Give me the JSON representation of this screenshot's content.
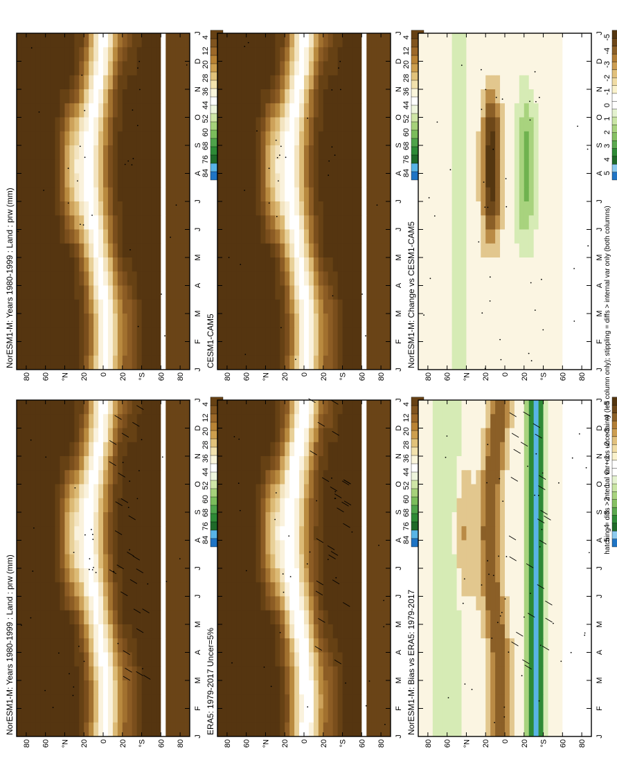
{
  "figure_note": "hatching = diffs > internal var+obs uncertainty (left column only); stippling = diffs > internal var only (both columns)",
  "month_ticks": [
    "J",
    "F",
    "M",
    "A",
    "M",
    "J",
    "J",
    "A",
    "S",
    "O",
    "N",
    "D",
    "J"
  ],
  "lat_ticks": [
    "80",
    "60",
    "°N",
    "20",
    "0",
    "20",
    "°S",
    "60",
    "80"
  ],
  "colorbars": {
    "abs": {
      "labels": [
        "84",
        "76",
        "68",
        "60",
        "52",
        "44",
        "36",
        "28",
        "20",
        "12",
        "4"
      ],
      "colors": [
        "#1f74c4",
        "#58b4e6",
        "#1f6a29",
        "#2e8a36",
        "#4fa34a",
        "#7bbd5b",
        "#a6d17a",
        "#cfe6a6",
        "#eef5dc",
        "#ffffff",
        "#fbf6dc",
        "#f2e2ad",
        "#e1c27a",
        "#cd9f4e",
        "#b98334",
        "#9c6829",
        "#80541f",
        "#664114"
      ]
    },
    "diff": {
      "labels": [
        "5",
        "4",
        "3",
        "2",
        "1",
        "0",
        "-1",
        "-2",
        "-3",
        "-4",
        "-5"
      ],
      "colors": [
        "#1f74c4",
        "#8ccbef",
        "#1f6a29",
        "#2e8a36",
        "#5ba84f",
        "#86c063",
        "#a8d37e",
        "#c9e5a4",
        "#e4f2cf",
        "#ffffff",
        "#ffffff",
        "#faf2cc",
        "#f0dca4",
        "#e1c07c",
        "#cc9d51",
        "#b17d35",
        "#8b5f27",
        "#6d4719",
        "#543610"
      ]
    }
  },
  "panels": [
    {
      "id": "a",
      "title": "NorESM1-M: Years 1980-1999 : Land : prw (mm)",
      "cbar": "abs"
    },
    {
      "id": "b",
      "title": "NorESM1-M: Years 1980-1999 : Land : prw (mm)",
      "cbar": "abs"
    },
    {
      "id": "c",
      "title": "ERA5: 1979-2017 Uncer=5%",
      "cbar": "abs"
    },
    {
      "id": "d",
      "title": "CESM1-CAM5",
      "cbar": "abs"
    },
    {
      "id": "e",
      "title": "NorESM1-M: Bias vs ERA5: 1979-2017",
      "cbar": "diff"
    },
    {
      "id": "f",
      "title": "NorESM1-M: Change vs CESM1-CAM5",
      "cbar": "diff"
    }
  ],
  "chart_data": [
    {
      "type": "heatmap",
      "title": "NorESM1-M: Years 1980-1999 : Land : prw (mm)",
      "x": [
        "J",
        "F",
        "M",
        "A",
        "M",
        "J",
        "J",
        "A",
        "S",
        "O",
        "N",
        "D",
        "J"
      ],
      "y_ticks": [
        "80",
        "60",
        "°N",
        "20",
        "0",
        "20",
        "°S",
        "60",
        "80"
      ],
      "colorbar_ticks": [
        84,
        76,
        68,
        60,
        52,
        44,
        36,
        28,
        20,
        12,
        4
      ],
      "hatching": true,
      "stippling": true
    },
    {
      "type": "heatmap",
      "title": "NorESM1-M: Years 1980-1999 : Land : prw (mm)",
      "x": [
        "J",
        "F",
        "M",
        "A",
        "M",
        "J",
        "J",
        "A",
        "S",
        "O",
        "N",
        "D",
        "J"
      ],
      "y_ticks": [
        "80",
        "60",
        "°N",
        "20",
        "0",
        "20",
        "°S",
        "60",
        "80"
      ],
      "colorbar_ticks": [
        84,
        76,
        68,
        60,
        52,
        44,
        36,
        28,
        20,
        12,
        4
      ],
      "hatching": false,
      "stippling": true
    },
    {
      "type": "heatmap",
      "title": "ERA5: 1979-2017 Uncer=5%",
      "x": [
        "J",
        "F",
        "M",
        "A",
        "M",
        "J",
        "J",
        "A",
        "S",
        "O",
        "N",
        "D",
        "J"
      ],
      "y_ticks": [
        "80",
        "60",
        "°N",
        "20",
        "0",
        "20",
        "°S",
        "60",
        "80"
      ],
      "colorbar_ticks": [
        84,
        76,
        68,
        60,
        52,
        44,
        36,
        28,
        20,
        12,
        4
      ],
      "hatching": true,
      "stippling": true
    },
    {
      "type": "heatmap",
      "title": "CESM1-CAM5",
      "x": [
        "J",
        "F",
        "M",
        "A",
        "M",
        "J",
        "J",
        "A",
        "S",
        "O",
        "N",
        "D",
        "J"
      ],
      "y_ticks": [
        "80",
        "60",
        "°N",
        "20",
        "0",
        "20",
        "°S",
        "60",
        "80"
      ],
      "colorbar_ticks": [
        84,
        76,
        68,
        60,
        52,
        44,
        36,
        28,
        20,
        12,
        4
      ],
      "hatching": false,
      "stippling": true
    },
    {
      "type": "heatmap",
      "title": "NorESM1-M: Bias vs ERA5: 1979-2017",
      "x": [
        "J",
        "F",
        "M",
        "A",
        "M",
        "J",
        "J",
        "A",
        "S",
        "O",
        "N",
        "D",
        "J"
      ],
      "y_ticks": [
        "80",
        "60",
        "°N",
        "20",
        "0",
        "20",
        "°S",
        "60",
        "80"
      ],
      "colorbar_ticks": [
        5,
        4,
        3,
        2,
        1,
        0,
        -1,
        -2,
        -3,
        -4,
        -5
      ],
      "hatching": true,
      "stippling": true
    },
    {
      "type": "heatmap",
      "title": "NorESM1-M: Change vs CESM1-CAM5",
      "x": [
        "J",
        "F",
        "M",
        "A",
        "M",
        "J",
        "J",
        "A",
        "S",
        "O",
        "N",
        "D",
        "J"
      ],
      "y_ticks": [
        "80",
        "60",
        "°N",
        "20",
        "0",
        "20",
        "°S",
        "60",
        "80"
      ],
      "colorbar_ticks": [
        5,
        4,
        3,
        2,
        1,
        0,
        -1,
        -2,
        -3,
        -4,
        -5
      ],
      "hatching": false,
      "stippling": true
    }
  ]
}
